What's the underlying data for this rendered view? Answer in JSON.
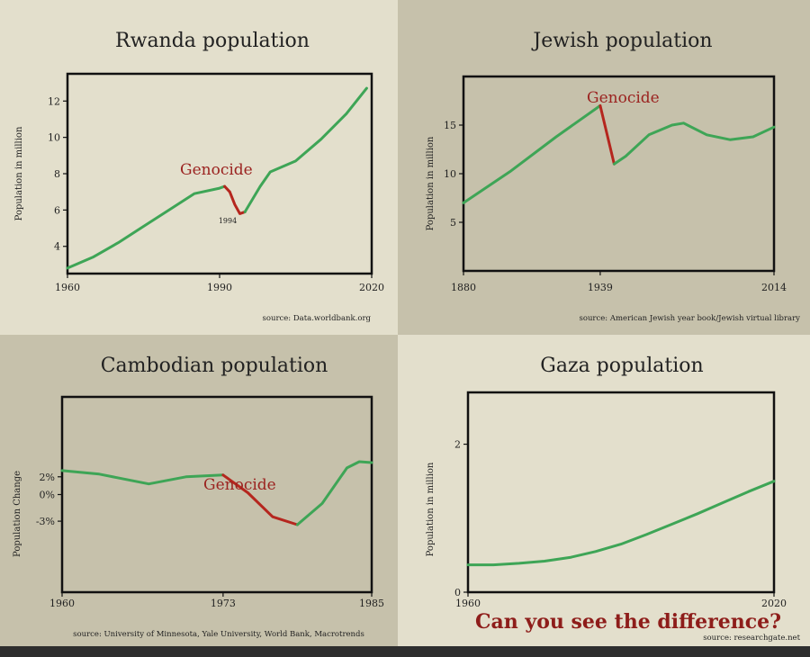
{
  "headline": "Can you see the difference?",
  "colors": {
    "normal": "#3ea556",
    "genocide": "#b5261e",
    "headline": "#8e1d1a"
  },
  "chart_data": [
    {
      "type": "line",
      "title": "Rwanda population",
      "ylabel": "Population in million",
      "xlim": [
        1960,
        2020
      ],
      "ylim": [
        2.5,
        13.5
      ],
      "xticks": [
        "1960",
        "1990",
        "2020"
      ],
      "yticks": [
        "4",
        "6",
        "8",
        "10",
        "12"
      ],
      "annotation": "Genocide",
      "annotation_small": "1994",
      "source": "source: Data.worldbank.org",
      "series": [
        {
          "segment": "normal",
          "x": [
            1960,
            1965,
            1970,
            1975,
            1980,
            1985,
            1990,
            1991
          ],
          "y": [
            2.8,
            3.4,
            4.2,
            5.1,
            6.0,
            6.9,
            7.2,
            7.3
          ]
        },
        {
          "segment": "genocide",
          "x": [
            1991,
            1992,
            1993,
            1994,
            1995
          ],
          "y": [
            7.3,
            7.0,
            6.3,
            5.8,
            5.9
          ]
        },
        {
          "segment": "normal",
          "x": [
            1995,
            1998,
            2000,
            2005,
            2010,
            2015,
            2019
          ],
          "y": [
            5.9,
            7.3,
            8.1,
            8.7,
            9.9,
            11.3,
            12.7
          ]
        }
      ]
    },
    {
      "type": "line",
      "title": "Jewish population",
      "ylabel": "Population in million",
      "xlim": [
        1880,
        2014
      ],
      "ylim": [
        0,
        20
      ],
      "xticks": [
        "1880",
        "1939",
        "2014"
      ],
      "yticks": [
        "5",
        "10",
        "15"
      ],
      "annotation": "Genocide",
      "source": "source: American Jewish year book/Jewish virtual library",
      "series": [
        {
          "segment": "normal",
          "x": [
            1880,
            1900,
            1920,
            1939
          ],
          "y": [
            7.0,
            10.2,
            13.8,
            17.0
          ]
        },
        {
          "segment": "genocide",
          "x": [
            1939,
            1945
          ],
          "y": [
            17.0,
            11.0
          ]
        },
        {
          "segment": "normal",
          "x": [
            1945,
            1950,
            1960,
            1970,
            1975,
            1985,
            1995,
            2005,
            2014
          ],
          "y": [
            11.0,
            11.8,
            14.0,
            15.0,
            15.2,
            14.0,
            13.5,
            13.8,
            14.8
          ]
        }
      ]
    },
    {
      "type": "line",
      "title": "Cambodian population",
      "ylabel": "Population Change",
      "xlim": [
        1960,
        1985
      ],
      "ylim": [
        -11,
        11
      ],
      "xticks": [
        "1960",
        "1973",
        "1985"
      ],
      "yticks": [
        "2%",
        "0%",
        "-3%"
      ],
      "annotation": "Genocide",
      "source": "source: University of Minnesota, Yale University, World Bank, Macrotrends",
      "series": [
        {
          "segment": "normal",
          "x": [
            1960,
            1963,
            1967,
            1970,
            1973
          ],
          "y": [
            2.7,
            2.3,
            1.2,
            2.0,
            2.2
          ]
        },
        {
          "segment": "genocide",
          "x": [
            1973,
            1975,
            1977,
            1979
          ],
          "y": [
            2.2,
            0.2,
            -2.5,
            -3.4
          ]
        },
        {
          "segment": "normal",
          "x": [
            1979,
            1981,
            1983,
            1984,
            1985
          ],
          "y": [
            -3.4,
            -1.0,
            3.0,
            3.7,
            3.6
          ]
        }
      ]
    },
    {
      "type": "line",
      "title": "Gaza population",
      "ylabel": "Population in million",
      "xlim": [
        1960,
        2020
      ],
      "ylim": [
        0,
        2.7
      ],
      "xticks": [
        "1960",
        "2020"
      ],
      "yticks": [
        "0",
        "2"
      ],
      "source": "source: researchgate.net",
      "series": [
        {
          "segment": "normal",
          "x": [
            1960,
            1965,
            1970,
            1975,
            1980,
            1985,
            1990,
            1995,
            2000,
            2005,
            2010,
            2015,
            2020
          ],
          "y": [
            0.37,
            0.37,
            0.39,
            0.42,
            0.47,
            0.55,
            0.65,
            0.78,
            0.92,
            1.06,
            1.21,
            1.36,
            1.5
          ]
        }
      ]
    }
  ]
}
